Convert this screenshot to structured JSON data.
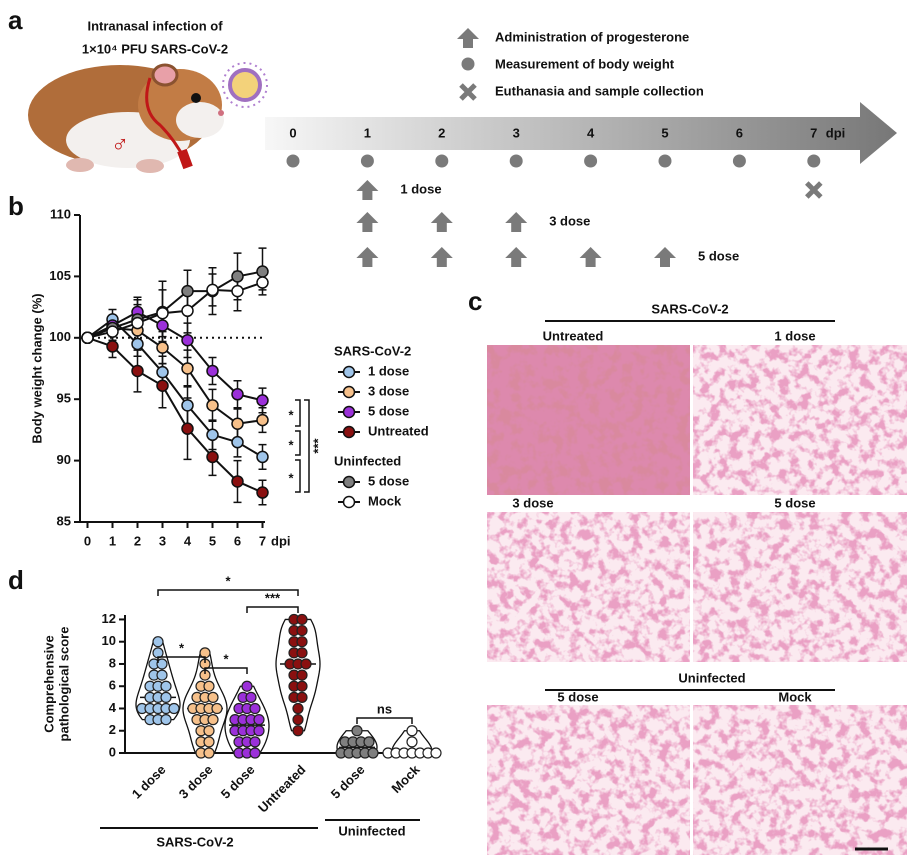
{
  "panel_labels": [
    "a",
    "b",
    "c",
    "d"
  ],
  "schedule": {
    "infection_text": [
      "Intranasal infection of",
      "1×10⁴ PFU SARS-CoV-2"
    ],
    "sex_symbol": "♂",
    "legend": [
      "Administration of progesterone",
      "Measurement of body weight",
      "Euthanasia and sample collection"
    ],
    "days": [
      0,
      1,
      2,
      3,
      4,
      5,
      6,
      7
    ],
    "unit": "dpi",
    "weight_days": [
      0,
      1,
      2,
      3,
      4,
      5,
      6,
      7
    ],
    "euthanasia_day": 7,
    "regimens": [
      {
        "name": "1 dose",
        "days": [
          1
        ]
      },
      {
        "name": "3 dose",
        "days": [
          1,
          2,
          3
        ]
      },
      {
        "name": "5 dose",
        "days": [
          1,
          2,
          3,
          4,
          5
        ]
      }
    ]
  },
  "chart_data": [
    {
      "type": "line",
      "ylabel": "Body weight change (%)",
      "xlabel": "dpi",
      "x": [
        0,
        1,
        2,
        3,
        4,
        5,
        6,
        7
      ],
      "xlim": [
        -0.3,
        7.1
      ],
      "xticks": [
        0,
        1,
        2,
        3,
        4,
        5,
        6,
        7
      ],
      "ylim": [
        85,
        110
      ],
      "yticks": [
        85,
        90,
        95,
        100,
        105,
        110
      ],
      "reference_line": 100,
      "annotations": [
        "*",
        "*",
        "*",
        "***"
      ],
      "groups": [
        {
          "name": "SARS-CoV-2",
          "series": [
            {
              "name": "1 dose",
              "color": "#9fc5ea",
              "values": [
                100,
                101.5,
                99.5,
                97.2,
                94.5,
                92.1,
                91.5,
                90.3
              ],
              "errors": [
                0.3,
                0.8,
                1.0,
                1.3,
                1.6,
                1.2,
                1.2,
                1.0
              ]
            },
            {
              "name": "3 dose",
              "color": "#f6c08a",
              "values": [
                100,
                100.8,
                100.6,
                99.2,
                97.5,
                94.5,
                93.0,
                93.3
              ],
              "errors": [
                0.3,
                0.7,
                1.4,
                1.3,
                1.5,
                1.3,
                1.2,
                1.0
              ]
            },
            {
              "name": "5 dose",
              "color": "#9b30d9",
              "values": [
                100,
                101.0,
                102.1,
                101.0,
                99.8,
                97.3,
                95.4,
                94.9
              ],
              "errors": [
                0.3,
                0.8,
                1.2,
                1.3,
                1.4,
                1.1,
                1.1,
                1.0
              ]
            },
            {
              "name": "Untreated",
              "color": "#8a1010",
              "values": [
                100,
                99.3,
                97.3,
                96.1,
                92.6,
                90.3,
                88.3,
                87.4
              ],
              "errors": [
                0.3,
                0.9,
                1.7,
                1.8,
                2.5,
                1.5,
                1.7,
                1.0
              ]
            }
          ]
        },
        {
          "name": "Uninfected",
          "series": [
            {
              "name": "5 dose",
              "color": "#7f7f7f",
              "values": [
                100,
                100.8,
                101.5,
                102.1,
                103.8,
                103.8,
                105.0,
                105.4
              ],
              "errors": [
                0.3,
                1.0,
                1.6,
                2.5,
                1.7,
                1.9,
                1.9,
                1.9
              ]
            },
            {
              "name": "Mock",
              "color": "#ffffff",
              "values": [
                100,
                100.5,
                101.2,
                102.0,
                102.2,
                103.9,
                103.8,
                104.5
              ],
              "errors": [
                0.3,
                0.9,
                1.5,
                1.9,
                1.8,
                1.3,
                1.6,
                0.6
              ]
            }
          ]
        }
      ]
    },
    {
      "type": "violin",
      "ylabel": [
        "Comprehensive",
        "pathological score"
      ],
      "categories": [
        "1 dose",
        "3 dose",
        "5 dose",
        "Untreated",
        "5 dose",
        "Mock"
      ],
      "colors": [
        "#9fc5ea",
        "#f6c08a",
        "#9b30d9",
        "#8a1010",
        "#7f7f7f",
        "#ffffff"
      ],
      "values": [
        [
          10,
          9,
          8,
          8,
          7,
          7,
          6,
          6,
          6,
          5,
          5,
          5,
          4,
          4,
          4,
          4,
          4,
          3,
          3,
          3
        ],
        [
          9,
          8,
          7,
          6,
          6,
          5,
          5,
          5,
          4,
          4,
          4,
          4,
          3,
          3,
          3,
          2,
          2,
          1,
          1,
          0,
          0
        ],
        [
          6,
          5,
          5,
          4,
          4,
          4,
          3,
          3,
          3,
          3,
          2,
          2,
          2,
          2,
          1,
          1,
          1,
          0,
          0,
          0
        ],
        [
          12,
          12,
          11,
          11,
          10,
          10,
          9,
          9,
          8,
          8,
          8,
          7,
          7,
          6,
          6,
          5,
          5,
          4,
          3,
          2
        ],
        [
          2,
          1,
          1,
          1,
          1,
          0,
          0,
          0,
          0,
          0
        ],
        [
          2,
          1,
          0,
          0,
          0,
          0,
          0,
          0,
          0
        ]
      ],
      "medians": [
        5,
        4,
        2.5,
        8,
        0.5,
        0
      ],
      "ylim": [
        0,
        12.4
      ],
      "yticks": [
        0,
        2,
        4,
        6,
        8,
        10,
        12
      ],
      "group_labels": [
        "SARS-CoV-2",
        "Uninfected"
      ],
      "annotations": [
        "*",
        "*",
        "*",
        "***",
        "ns"
      ]
    }
  ],
  "histology": {
    "group_titles": [
      "SARS-CoV-2",
      "Uninfected"
    ],
    "panels": [
      "Untreated",
      "1 dose",
      "3 dose",
      "5 dose",
      "5 dose",
      "Mock"
    ]
  }
}
